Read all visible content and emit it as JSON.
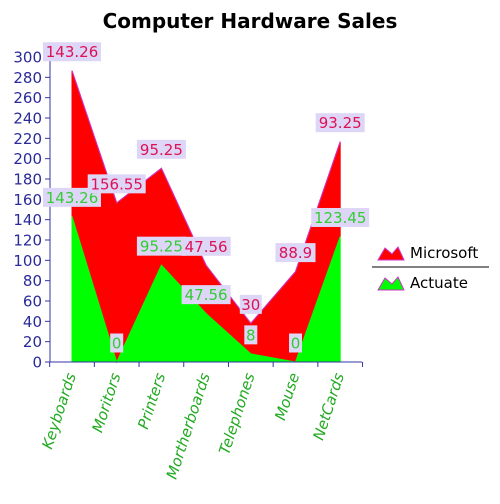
{
  "chart_data": {
    "type": "area",
    "title": "Computer Hardware Sales",
    "xlabel": "",
    "ylabel": "",
    "categories": [
      "Keyboards",
      "Moritors",
      "Printers",
      "Mortherboards",
      "Telephones",
      "Mouse",
      "NetCards"
    ],
    "series": [
      {
        "name": "Microsoft",
        "color": "#ff0000",
        "values": [
          143.26,
          156.55,
          95.25,
          47.56,
          30,
          88.9,
          93.25
        ],
        "labels": [
          "143.26",
          "156.55",
          "95.25",
          "47.56",
          "30",
          "88.9",
          "93.25"
        ],
        "label_color": "#dd1155"
      },
      {
        "name": "Actuate",
        "color": "#00ff00",
        "values": [
          143.26,
          0,
          95.25,
          47.56,
          8,
          0,
          123.45
        ],
        "labels": [
          "143.26",
          "0",
          "95.25",
          "47.56",
          "8",
          "0",
          "123.45"
        ],
        "label_color": "#33cc33"
      }
    ],
    "stacked": true,
    "ylim": [
      0,
      300
    ],
    "yticks": [
      "0",
      "20",
      "40",
      "60",
      "80",
      "100",
      "120",
      "140",
      "160",
      "180",
      "200",
      "220",
      "240",
      "260",
      "280",
      "300"
    ],
    "legend_position": "right",
    "grid": false,
    "colors": {
      "axis": "#3333aa",
      "tick_label": "#2a2a9a",
      "category_label": "#22aa22",
      "label_bg": "#ddd6f6",
      "line": "#cc33cc"
    }
  }
}
